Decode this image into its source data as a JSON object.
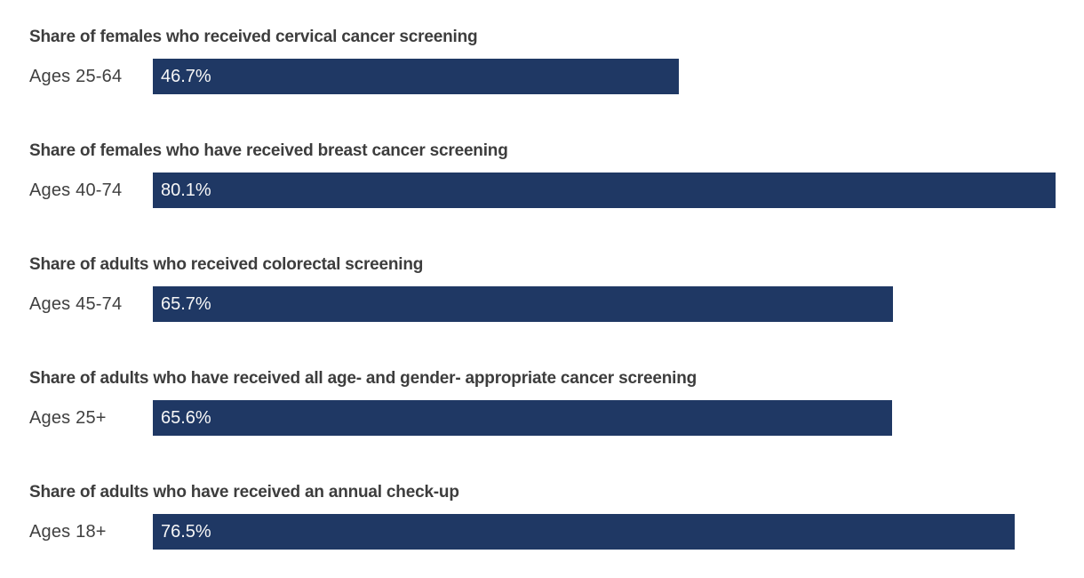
{
  "chart_data": {
    "type": "bar",
    "orientation": "horizontal",
    "bar_color": "#1f3864",
    "xlim": [
      0,
      100
    ],
    "grid": false,
    "legend": false,
    "categories": [
      "Ages 25-64",
      "Ages 40-74",
      "Ages 45-74",
      "Ages 25+",
      "Ages 18+"
    ],
    "values": [
      46.7,
      80.1,
      65.7,
      65.6,
      76.5
    ],
    "rows": [
      {
        "title": "Share of females who received cervical cancer screening",
        "age_label": "Ages 25-64",
        "value": 46.7,
        "value_label": "46.7%"
      },
      {
        "title": "Share of females who have received breast cancer screening",
        "age_label": "Ages 40-74",
        "value": 80.1,
        "value_label": "80.1%"
      },
      {
        "title": "Share of adults who received colorectal screening",
        "age_label": "Ages 45-74",
        "value": 65.7,
        "value_label": "65.7%"
      },
      {
        "title": "Share of adults who have received all age- and gender- appropriate cancer screening",
        "age_label": "Ages 25+",
        "value": 65.6,
        "value_label": "65.6%"
      },
      {
        "title": "Share of adults who have received an annual check-up",
        "age_label": "Ages 18+",
        "value": 76.5,
        "value_label": "76.5%"
      }
    ]
  }
}
